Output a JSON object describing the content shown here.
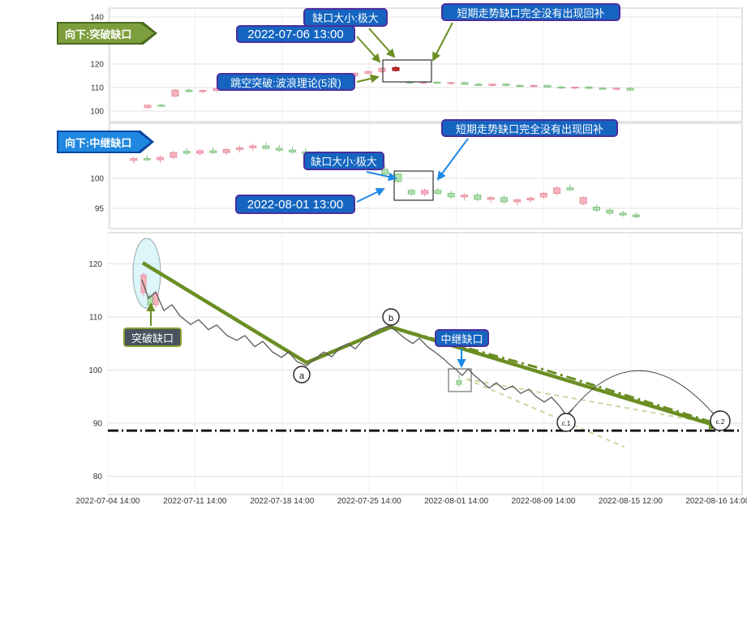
{
  "colors": {
    "annotation_blue": "#1565c0",
    "annotation_border": "#4b2e9e",
    "olive": "#6b8e23",
    "banner_green": "#7d9e3c",
    "banner_blue": "#1e88e5",
    "candle_up_fill": "#f5b3bd",
    "candle_up_stroke": "#e98fa0",
    "candle_down_fill": "#b2dfb0",
    "candle_down_stroke": "#84c384",
    "highlight_red": "#c62828",
    "dark_label_bg": "#46525e"
  },
  "top_panel": {
    "banner": "向下:突破缺口",
    "gap_size_label": "缺口大小:极大",
    "timestamp_label": "2022-07-06 13:00",
    "no_backfill_label": "短期走势缺口完全没有出现回补",
    "wave_label": "跳空突破:波浪理论(5浪)"
  },
  "middle_panel": {
    "banner": "向下:中继缺口",
    "gap_size_label": "缺口大小:极大",
    "timestamp_label": "2022-08-01 13:00",
    "no_backfill_label": "短期走势缺口完全没有出现回补"
  },
  "bottom_panel": {
    "breakaway_label": "突破缺口",
    "continuation_label": "中继缺口"
  },
  "chart_data": [
    {
      "type": "candlestick",
      "name": "breakaway-gap-panel",
      "title": "向下:突破缺口",
      "yticks": [
        140,
        120,
        110,
        100
      ],
      "ylim": [
        97,
        144
      ],
      "gap_timestamp": "2022-07-06 13:00",
      "highlight_index": 18,
      "candles": [
        [
          101.6,
          102.9,
          100.9,
          102.5
        ],
        [
          102.5,
          103.2,
          101.9,
          102.1
        ],
        [
          106.4,
          109.3,
          105.9,
          108.9
        ],
        [
          108.9,
          109.6,
          107.9,
          108.3
        ],
        [
          108.3,
          109.1,
          107.6,
          108.8
        ],
        [
          108.8,
          109.9,
          108.2,
          109.5
        ],
        [
          109.5,
          110.4,
          108.9,
          110.0
        ],
        [
          110.0,
          110.6,
          109.2,
          109.6
        ],
        [
          109.6,
          111.0,
          109.3,
          110.7
        ],
        [
          110.7,
          111.6,
          110.1,
          111.3
        ],
        [
          111.3,
          112.2,
          110.8,
          111.9
        ],
        [
          111.9,
          112.4,
          110.9,
          111.3
        ],
        [
          111.3,
          113.0,
          111.0,
          112.7
        ],
        [
          112.7,
          114.2,
          112.3,
          113.9
        ],
        [
          113.9,
          115.3,
          113.5,
          115.0
        ],
        [
          115.0,
          116.4,
          114.6,
          116.1
        ],
        [
          116.1,
          117.2,
          115.6,
          116.8
        ],
        [
          116.8,
          118.6,
          116.3,
          118.2
        ],
        [
          117.2,
          119.1,
          116.8,
          118.5
        ],
        [
          112.4,
          112.9,
          111.6,
          111.9
        ],
        [
          111.9,
          112.6,
          111.4,
          112.3
        ],
        [
          112.3,
          112.7,
          111.5,
          111.8
        ],
        [
          111.8,
          112.4,
          111.2,
          112.1
        ],
        [
          112.1,
          112.5,
          111.1,
          111.4
        ],
        [
          111.4,
          112.0,
          110.7,
          110.9
        ],
        [
          110.9,
          111.8,
          110.5,
          111.5
        ],
        [
          111.5,
          111.9,
          110.6,
          110.9
        ],
        [
          110.9,
          111.4,
          110.2,
          110.5
        ],
        [
          110.5,
          111.2,
          110.0,
          110.9
        ],
        [
          110.9,
          111.3,
          109.9,
          110.2
        ],
        [
          110.2,
          110.8,
          109.5,
          109.8
        ],
        [
          109.8,
          110.5,
          109.3,
          110.2
        ],
        [
          110.2,
          110.6,
          109.4,
          109.7
        ],
        [
          109.7,
          110.3,
          109.0,
          109.3
        ],
        [
          109.3,
          110.0,
          108.8,
          109.7
        ],
        [
          109.7,
          110.1,
          108.6,
          108.9
        ]
      ]
    },
    {
      "type": "candlestick",
      "name": "continuation-gap-panel",
      "title": "向下:中继缺口",
      "yticks": [
        100,
        95
      ],
      "ylim": [
        92.5,
        108
      ],
      "gap_timestamp": "2022-08-01 13:00",
      "candles": [
        [
          103.0,
          103.6,
          102.4,
          103.3
        ],
        [
          103.3,
          103.9,
          102.8,
          103.1
        ],
        [
          103.1,
          103.8,
          102.6,
          103.5
        ],
        [
          103.5,
          104.6,
          103.2,
          104.3
        ],
        [
          104.5,
          105.0,
          103.9,
          104.2
        ],
        [
          104.2,
          104.9,
          103.8,
          104.6
        ],
        [
          104.6,
          105.2,
          104.0,
          104.3
        ],
        [
          104.3,
          105.1,
          103.9,
          104.8
        ],
        [
          104.8,
          105.5,
          104.3,
          105.1
        ],
        [
          105.1,
          105.8,
          104.6,
          105.4
        ],
        [
          105.4,
          106.0,
          104.8,
          105.0
        ],
        [
          105.0,
          105.6,
          104.4,
          104.7
        ],
        [
          104.7,
          105.3,
          104.1,
          104.4
        ],
        [
          104.4,
          105.0,
          103.8,
          104.1
        ],
        [
          104.1,
          104.6,
          103.3,
          103.6
        ],
        [
          103.6,
          104.2,
          102.9,
          103.2
        ],
        [
          103.2,
          103.8,
          102.4,
          102.7
        ],
        [
          102.7,
          103.3,
          101.8,
          102.1
        ],
        [
          102.1,
          102.8,
          101.2,
          101.5
        ],
        [
          101.5,
          102.2,
          100.4,
          100.7
        ],
        [
          100.7,
          100.9,
          99.2,
          99.5
        ],
        [
          98.0,
          98.2,
          97.1,
          97.4
        ],
        [
          97.4,
          98.3,
          97.0,
          98.0
        ],
        [
          98.0,
          98.4,
          97.2,
          97.5
        ],
        [
          97.5,
          97.9,
          96.6,
          96.9
        ],
        [
          96.9,
          97.5,
          96.3,
          97.2
        ],
        [
          97.2,
          97.6,
          96.2,
          96.5
        ],
        [
          96.5,
          97.1,
          95.9,
          96.8
        ],
        [
          96.8,
          97.2,
          95.8,
          96.1
        ],
        [
          96.1,
          96.7,
          95.5,
          96.4
        ],
        [
          96.4,
          97.0,
          96.0,
          96.7
        ],
        [
          96.9,
          97.8,
          96.6,
          97.5
        ],
        [
          97.5,
          98.7,
          97.2,
          98.4
        ],
        [
          98.4,
          99.0,
          97.9,
          98.1
        ],
        [
          95.8,
          97.0,
          95.5,
          96.8
        ],
        [
          95.2,
          95.6,
          94.4,
          94.7
        ],
        [
          94.7,
          95.1,
          93.9,
          94.2
        ],
        [
          94.2,
          94.6,
          93.6,
          93.9
        ],
        [
          93.9,
          94.3,
          93.3,
          93.6
        ]
      ]
    },
    {
      "type": "line",
      "name": "overview-panel",
      "yticks": [
        120,
        110,
        100,
        90,
        80
      ],
      "ylim": [
        78,
        123
      ],
      "xticks": [
        "2022-07-04 14:00",
        "2022-07-11 14:00",
        "2022-07-18 14:00",
        "2022-07-25 14:00",
        "2022-08-01 14:00",
        "2022-08-09 14:00",
        "2022-08-15 12:00",
        "2022-08-16 14:00"
      ],
      "point_labels": [
        "a",
        "b",
        "c.1",
        "c.2"
      ],
      "hline": 88.6,
      "price_line": [
        [
          175,
          117.0
        ],
        [
          183,
          113.5
        ],
        [
          192,
          114.7
        ],
        [
          202,
          111.2
        ],
        [
          212,
          112.3
        ],
        [
          222,
          110.2
        ],
        [
          235,
          108.6
        ],
        [
          245,
          109.5
        ],
        [
          257,
          107.6
        ],
        [
          267,
          108.5
        ],
        [
          280,
          106.5
        ],
        [
          292,
          105.6
        ],
        [
          302,
          106.5
        ],
        [
          314,
          104.4
        ],
        [
          324,
          105.4
        ],
        [
          336,
          103.4
        ],
        [
          347,
          102.4
        ],
        [
          356,
          103.4
        ],
        [
          366,
          101.6
        ],
        [
          378,
          100.8
        ],
        [
          389,
          102.2
        ],
        [
          399,
          103.4
        ],
        [
          409,
          102.5
        ],
        [
          419,
          104.2
        ],
        [
          429,
          105.0
        ],
        [
          438,
          104.0
        ],
        [
          448,
          105.7
        ],
        [
          458,
          106.9
        ],
        [
          468,
          107.7
        ],
        [
          479,
          108.3
        ],
        [
          489,
          107.3
        ],
        [
          499,
          106.0
        ],
        [
          509,
          105.0
        ],
        [
          517,
          106.0
        ],
        [
          527,
          104.4
        ],
        [
          537,
          103.3
        ],
        [
          547,
          102.1
        ],
        [
          554,
          101.1
        ],
        [
          562,
          100.1
        ],
        [
          570,
          99.0
        ],
        [
          577,
          100.2
        ],
        [
          585,
          99.0
        ],
        [
          594,
          97.8
        ],
        [
          603,
          96.6
        ],
        [
          612,
          97.6
        ],
        [
          622,
          96.3
        ],
        [
          632,
          97.0
        ],
        [
          642,
          95.6
        ],
        [
          652,
          96.4
        ],
        [
          661,
          95.0
        ],
        [
          671,
          94.0
        ],
        [
          680,
          94.9
        ],
        [
          690,
          93.2
        ],
        [
          698,
          91.5
        ],
        [
          706,
          92.7
        ]
      ],
      "trend_solid": [
        [
          176,
          120.2
        ],
        [
          378,
          101.4
        ],
        [
          482,
          108.1
        ],
        [
          888,
          89.3
        ]
      ],
      "trend_dashdot": [
        [
          482,
          108.1
        ],
        [
          660,
          100.6
        ],
        [
          888,
          89.7
        ]
      ],
      "projection_dashed": [
        [
          [
            575,
            98.3
          ],
          [
            770,
            85.5
          ]
        ],
        [
          [
            575,
            98.3
          ],
          [
            884,
            89.8
          ]
        ]
      ],
      "candles": [
        [
          177,
          [
            114.6,
            118.3,
            113.9,
            117.9
          ]
        ],
        [
          185,
          [
            113.9,
            114.4,
            111.9,
            112.3
          ]
        ],
        [
          192,
          [
            112.3,
            114.9,
            111.8,
            114.5
          ]
        ]
      ],
      "gap_candle": [
        566,
        [
          98.0,
          99.2,
          96.8,
          97.3
        ]
      ]
    }
  ]
}
